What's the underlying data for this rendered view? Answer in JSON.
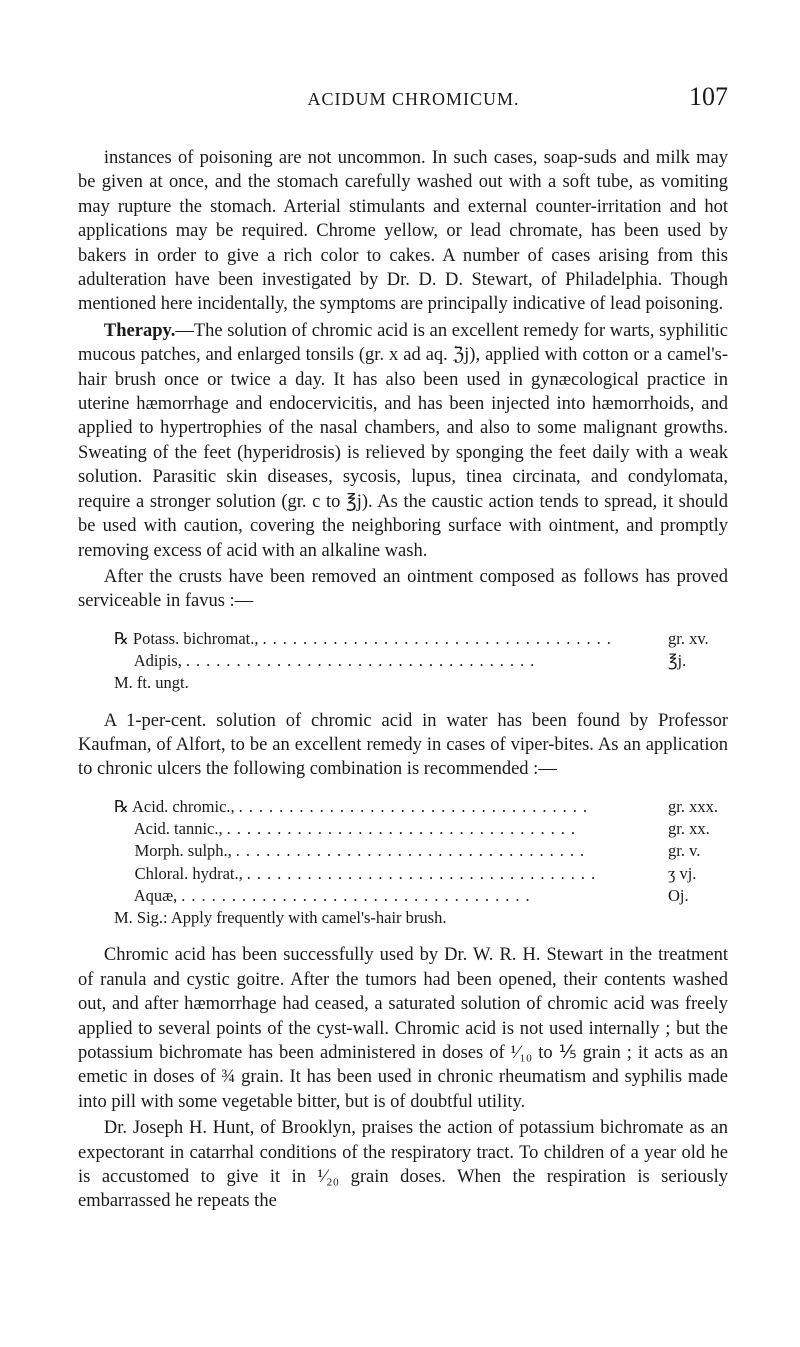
{
  "header": {
    "running_head": "ACIDUM CHROMICUM.",
    "page_number": "107"
  },
  "p1": "instances of poisoning are not uncommon. In such cases, soap-suds and milk may be given at once, and the stomach carefully washed out with a soft tube, as vomiting may rupture the stomach. Arterial stimulants and external counter-irritation and hot applications may be required. Chrome yellow, or lead chromate, has been used by bakers in order to give a rich color to cakes. A number of cases arising from this adulteration have been investigated by Dr. D. D. Stewart, of Philadelphia. Though mentioned here incidentally, the symptoms are principally indicative of lead poisoning.",
  "therapy_label": "Therapy.",
  "p2": "—The solution of chromic acid is an excellent remedy for warts, syphilitic mucous patches, and enlarged tonsils (gr. x ad aq. ℨj), applied with cotton or a camel's-hair brush once or twice a day. It has also been used in gynæcological practice in uterine hæmorrhage and endocervicitis, and has been injected into hæmorrhoids, and applied to hypertrophies of the nasal chambers, and also to some malignant growths. Sweating of the feet (hyperidrosis) is relieved by sponging the feet daily with a weak solution. Parasitic skin diseases, sycosis, lupus, tinea circinata, and condylomata, require a stronger solution (gr. c to ℥j). As the caustic action tends to spread, it should be used with caution, covering the neighboring surface with ointment, and promptly removing excess of acid with an alkaline wash.",
  "p3": "After the crusts have been removed an ointment composed as follows has proved serviceable in favus :—",
  "rx1": {
    "line1_name": "℞ Potass. bichromat.,",
    "line1_amount": "gr. xv.",
    "line2_name": "  Adipis,",
    "line2_amount": "℥j.",
    "line3": "M. ft. ungt."
  },
  "p4": "A 1-per-cent. solution of chromic acid in water has been found by Professor Kaufman, of Alfort, to be an excellent remedy in cases of viper-bites. As an application to chronic ulcers the following combination is recommended :—",
  "rx2": {
    "l1_name": "℞ Acid. chromic.,",
    "l1_amount": "gr. xxx.",
    "l2_name": "  Acid. tannic.,",
    "l2_amount": "gr. xx.",
    "l3_name": "  Morph. sulph.,",
    "l3_amount": "gr. v.",
    "l4_name": "  Chloral. hydrat.,",
    "l4_amount": "ʒ vj.",
    "l5_name": "  Aquæ,",
    "l5_amount": "Oj.",
    "sig": "M. Sig.: Apply frequently with camel's-hair brush."
  },
  "p5": "Chromic acid has been successfully used by Dr. W. R. H. Stewart in the treatment of ranula and cystic goitre. After the tumors had been opened, their contents washed out, and after hæmorrhage had ceased, a saturated solution of chromic acid was freely applied to several points of the cyst-wall. Chromic acid is not used internally ; but the potassium bichromate has been administered in doses of ¹⁄₁₀ to ⅕ grain ; it acts as an emetic in doses of ¾ grain. It has been used in chronic rheumatism and syphilis made into pill with some vegetable bitter, but is of doubtful utility.",
  "p6": "Dr. Joseph H. Hunt, of Brooklyn, praises the action of potassium bichromate as an expectorant in catarrhal conditions of the respiratory tract. To children of a year old he is accustomed to give it in ¹⁄₂₀ grain doses. When the respiration is seriously embarrassed he repeats the"
}
